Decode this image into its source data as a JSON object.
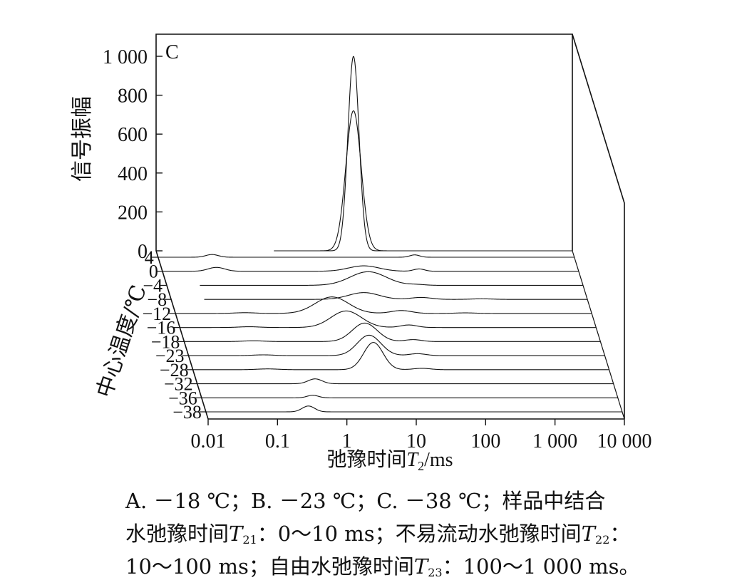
{
  "chart_data": {
    "type": "line",
    "panel_label": "C",
    "ylabel": "信号振幅",
    "zlabel": "中心温度/℃",
    "xlabel": {
      "prefix": "弛豫时间",
      "symbol": "T",
      "sub": "2",
      "suffix": "/ms"
    },
    "y_ticks": [
      0,
      200,
      400,
      600,
      800,
      1000
    ],
    "y_tick_labels": [
      "0",
      "200",
      "400",
      "600",
      "800",
      "1 000"
    ],
    "ylim": [
      0,
      1000
    ],
    "x_scale": "log",
    "x_ticks": [
      0.01,
      0.1,
      1,
      10,
      100,
      1000,
      10000
    ],
    "x_tick_labels": [
      "0.01",
      "0.1",
      "1",
      "10",
      "100",
      "1 000",
      "10 000"
    ],
    "xlim": [
      0.01,
      10000
    ],
    "x_start": [
      0.01,
      0.01,
      0.03,
      0.03,
      0.01,
      0.01,
      0.01,
      0.01,
      0.01,
      0.01,
      0.01,
      0.01
    ],
    "series": [
      {
        "name": "4",
        "peaks": [
          [
            0.06,
            14,
            0.09
          ],
          [
            50,
            12,
            0.07
          ]
        ]
      },
      {
        "name": "0",
        "peaks": [
          [
            0.06,
            20,
            0.12
          ],
          [
            8,
            28,
            0.22
          ],
          [
            50,
            12,
            0.08
          ]
        ]
      },
      {
        "name": "−4",
        "peaks": [
          [
            8,
            70,
            0.26
          ],
          [
            40,
            4,
            0.12
          ]
        ]
      },
      {
        "name": "−8",
        "peaks": [
          [
            6,
            35,
            0.22
          ],
          [
            40,
            10,
            0.15
          ],
          [
            300,
            3,
            0.15
          ]
        ]
      },
      {
        "name": "−12",
        "peaks": [
          [
            0.1,
            4,
            0.15
          ],
          [
            1.8,
            85,
            0.24
          ],
          [
            18,
            15,
            0.15
          ],
          [
            150,
            3,
            0.15
          ]
        ]
      },
      {
        "name": "−16",
        "peaks": [
          [
            0.1,
            4,
            0.15
          ],
          [
            2.5,
            85,
            0.22
          ],
          [
            20,
            13,
            0.12
          ]
        ]
      },
      {
        "name": "−18",
        "peaks": [
          [
            0.1,
            4,
            0.15
          ],
          [
            4,
            95,
            0.18
          ],
          [
            20,
            10,
            0.12
          ]
        ]
      },
      {
        "name": "−23",
        "peaks": [
          [
            0.12,
            4,
            0.15
          ],
          [
            4,
            105,
            0.17
          ],
          [
            20,
            10,
            0.12
          ]
        ]
      },
      {
        "name": "−28",
        "peaks": [
          [
            0.12,
            4,
            0.15
          ],
          [
            4,
            140,
            0.14
          ],
          [
            20,
            7,
            0.12
          ]
        ]
      },
      {
        "name": "−32",
        "peaks": [
          [
            0.5,
            25,
            0.1
          ]
        ]
      },
      {
        "name": "−36",
        "peaks": [
          [
            0.4,
            13,
            0.08
          ]
        ]
      },
      {
        "name": "−38",
        "peaks": [
          [
            0.3,
            30,
            0.09
          ]
        ]
      }
    ],
    "back_curves": [
      {
        "name": "A",
        "peaks": [
          [
            7,
            720,
            0.11
          ]
        ]
      },
      {
        "name": "B",
        "peaks": [
          [
            7,
            1000,
            0.08
          ]
        ]
      }
    ]
  },
  "caption": {
    "line1": "A. －18 ℃；B. －23 ℃；C. －38 ℃；样品中结合",
    "line2_pre": "水弛豫时间",
    "t21_symbol": "T",
    "t21_sub": "21",
    "line2_mid": "：0～10 ms；不易流动水弛豫时间",
    "t22_symbol": "T",
    "t22_sub": "22",
    "line2_end": "：",
    "line3_pre": "10～100 ms；自由水弛豫时间",
    "t23_symbol": "T",
    "t23_sub": "23",
    "line3_end": "：100～1 000 ms。"
  }
}
